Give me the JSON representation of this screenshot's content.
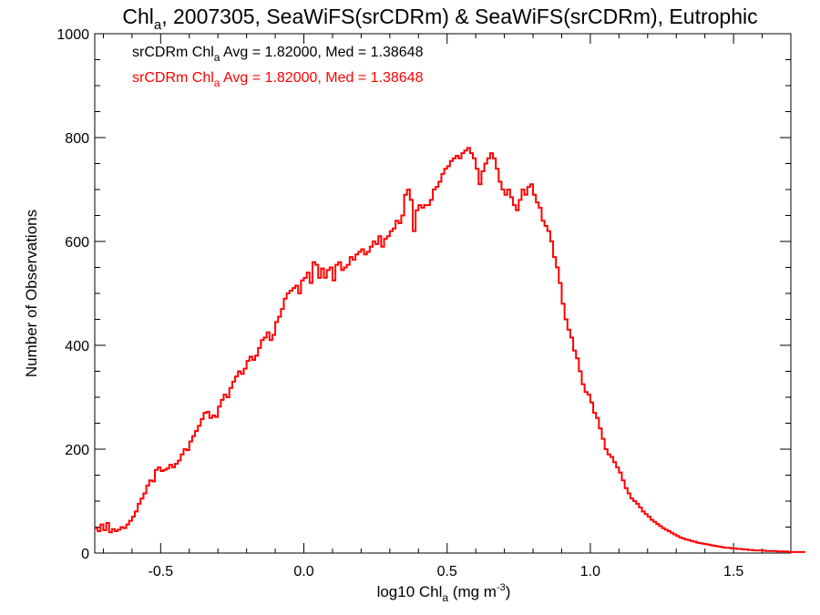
{
  "chart_data": {
    "type": "line",
    "title": {
      "prefix": "Chl",
      "sub": "a",
      "rest": ", 2007305, SeaWiFS(srCDRm) & SeaWiFS(srCDRm), Eutrophic"
    },
    "xlabel": {
      "prefix": "log10 Chl",
      "sub": "a",
      "rest": " (mg m",
      "sup": "-3",
      "end": ")"
    },
    "ylabel": "Number of Observations",
    "xlim": [
      -0.73,
      1.7
    ],
    "ylim": [
      0,
      1000
    ],
    "x_ticks": [
      "-0.5",
      "0.0",
      "0.5",
      "1.0",
      "1.5"
    ],
    "x_tick_values": [
      -0.5,
      0.0,
      0.5,
      1.0,
      1.5
    ],
    "y_ticks": [
      "0",
      "200",
      "400",
      "600",
      "800",
      "1000"
    ],
    "y_tick_values": [
      0,
      200,
      400,
      600,
      800,
      1000
    ],
    "legend_position": "top-left",
    "legend": [
      {
        "prefix": "srCDRm Chl",
        "sub": "a",
        "rest": " Avg = 1.82000, Med = 1.38648",
        "color": "#000000"
      },
      {
        "prefix": "srCDRm Chl",
        "sub": "a",
        "rest": " Avg = 1.82000, Med = 1.38648",
        "color": "#ff0000"
      }
    ],
    "bin_width": 0.01,
    "x_start": -0.73,
    "series": [
      {
        "name": "srCDRm Chl a",
        "color": "#ff0000",
        "step": true,
        "values": [
          48,
          42,
          55,
          44,
          58,
          40,
          46,
          42,
          45,
          50,
          48,
          55,
          62,
          70,
          80,
          95,
          105,
          115,
          130,
          140,
          138,
          160,
          165,
          158,
          160,
          163,
          170,
          165,
          172,
          178,
          190,
          200,
          198,
          215,
          225,
          235,
          245,
          258,
          270,
          272,
          260,
          265,
          262,
          282,
          295,
          305,
          300,
          318,
          330,
          340,
          350,
          345,
          355,
          370,
          378,
          372,
          380,
          395,
          410,
          415,
          425,
          410,
          420,
          445,
          455,
          470,
          490,
          500,
          505,
          510,
          515,
          500,
          525,
          530,
          540,
          520,
          560,
          555,
          530,
          548,
          530,
          545,
          550,
          525,
          555,
          560,
          545,
          550,
          555,
          570,
          565,
          575,
          580,
          585,
          575,
          580,
          590,
          600,
          595,
          610,
          590,
          605,
          610,
          620,
          625,
          640,
          635,
          650,
          690,
          700,
          680,
          620,
          660,
          670,
          665,
          670,
          670,
          680,
          700,
          705,
          715,
          730,
          740,
          745,
          755,
          760,
          765,
          760,
          770,
          775,
          780,
          770,
          760,
          740,
          710,
          735,
          750,
          760,
          770,
          760,
          740,
          715,
          700,
          690,
          700,
          685,
          670,
          660,
          680,
          700,
          690,
          705,
          710,
          690,
          675,
          665,
          640,
          630,
          620,
          600,
          570,
          550,
          520,
          480,
          450,
          430,
          415,
          390,
          375,
          350,
          325,
          310,
          305,
          290,
          270,
          260,
          240,
          220,
          200,
          190,
          185,
          175,
          165,
          155,
          140,
          125,
          115,
          105,
          100,
          95,
          88,
          80,
          75,
          70,
          64,
          60,
          56,
          52,
          48,
          45,
          42,
          39,
          36,
          33,
          30,
          28,
          26,
          25,
          23,
          22,
          20,
          19,
          18,
          17,
          16,
          15,
          14,
          13,
          12,
          11,
          10,
          10,
          9,
          9,
          8,
          8,
          7,
          7,
          6,
          6,
          5,
          5,
          5,
          5,
          4,
          4,
          4,
          4,
          3,
          3,
          3,
          3,
          2,
          2,
          2,
          2,
          2,
          2,
          2
        ]
      }
    ]
  }
}
